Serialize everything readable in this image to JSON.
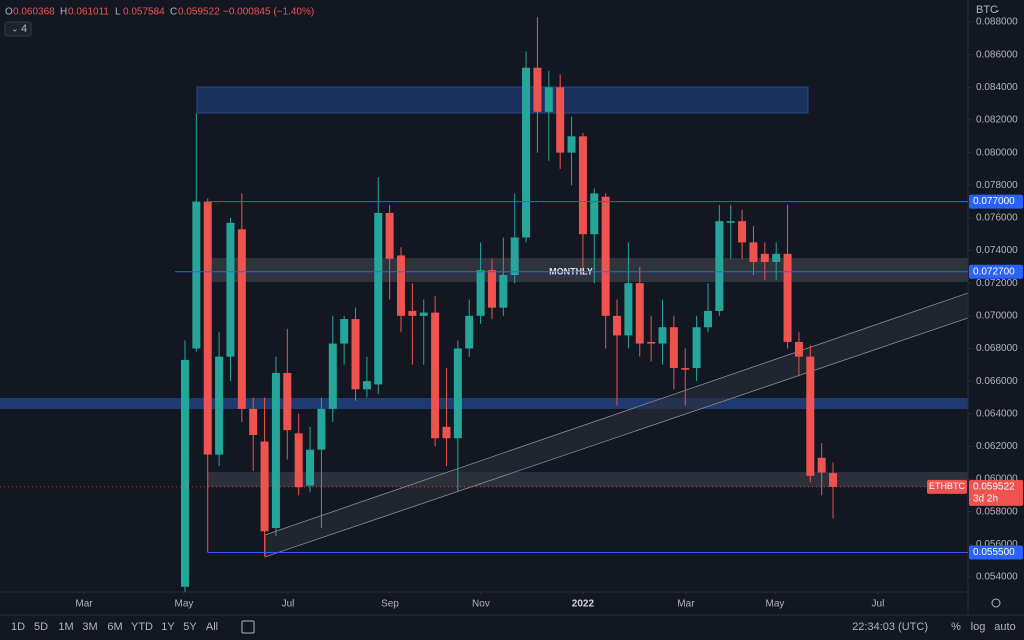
{
  "chart_data": {
    "type": "candlestick",
    "symbol": "ETHBTC",
    "currency": "BTC",
    "indicator_count": 4,
    "countdown": "3d 2h",
    "ohlc_labels": [
      "O",
      "H",
      "L",
      "C"
    ],
    "change": "−0.000845 (−1.40%)",
    "annotation": "MONTHLY",
    "up_color": "#26a69a",
    "down_color": "#ef5350",
    "grid": false,
    "x": [
      0,
      1,
      2,
      3,
      4,
      5,
      6,
      7,
      8,
      9,
      10,
      11,
      12,
      13,
      14,
      15,
      16,
      17,
      18,
      19,
      20,
      21,
      22,
      23,
      24,
      25,
      26,
      27,
      28,
      29,
      30,
      31,
      32,
      33,
      34,
      35,
      36,
      37,
      38,
      39,
      40,
      41,
      42,
      43,
      44,
      45,
      46,
      47,
      48,
      49,
      50,
      51,
      52,
      53,
      54,
      55,
      56,
      57
    ],
    "open": [
      0.0534,
      0.068,
      0.077,
      0.0615,
      0.0675,
      0.0753,
      0.0643,
      0.0623,
      0.057,
      0.0665,
      0.0628,
      0.0596,
      0.0618,
      0.0643,
      0.0683,
      0.0698,
      0.0655,
      0.0658,
      0.0763,
      0.0737,
      0.0703,
      0.07,
      0.0702,
      0.0632,
      0.0625,
      0.068,
      0.07,
      0.0728,
      0.0705,
      0.0725,
      0.0748,
      0.0852,
      0.0825,
      0.084,
      0.08,
      0.081,
      0.075,
      0.0773,
      0.07,
      0.0688,
      0.072,
      0.0684,
      0.0683,
      0.0693,
      0.0668,
      0.0668,
      0.0693,
      0.0703,
      0.0757,
      0.0758,
      0.0745,
      0.0738,
      0.0733,
      0.0738,
      0.0684,
      0.0675,
      0.0613,
      0.060368
    ],
    "high": [
      0.0685,
      0.0824,
      0.0772,
      0.069,
      0.076,
      0.0775,
      0.065,
      0.065,
      0.0675,
      0.0692,
      0.064,
      0.0632,
      0.065,
      0.07,
      0.07,
      0.0705,
      0.0675,
      0.0785,
      0.0768,
      0.0742,
      0.072,
      0.071,
      0.0712,
      0.0668,
      0.0685,
      0.071,
      0.0745,
      0.0735,
      0.0748,
      0.0775,
      0.0862,
      0.0883,
      0.085,
      0.0848,
      0.0822,
      0.0812,
      0.0778,
      0.0775,
      0.071,
      0.0745,
      0.073,
      0.07,
      0.071,
      0.07,
      0.068,
      0.07,
      0.072,
      0.0768,
      0.0768,
      0.0765,
      0.0755,
      0.0745,
      0.0745,
      0.0768,
      0.069,
      0.0682,
      0.0622,
      0.061011
    ],
    "low": [
      0.0531,
      0.0678,
      0.0555,
      0.0608,
      0.066,
      0.0635,
      0.0605,
      0.0553,
      0.0565,
      0.0612,
      0.059,
      0.0592,
      0.057,
      0.0635,
      0.067,
      0.0648,
      0.065,
      0.0652,
      0.071,
      0.069,
      0.067,
      0.067,
      0.062,
      0.0608,
      0.0592,
      0.0675,
      0.0695,
      0.0698,
      0.07,
      0.072,
      0.0745,
      0.08,
      0.0795,
      0.079,
      0.078,
      0.0725,
      0.072,
      0.068,
      0.0645,
      0.068,
      0.0675,
      0.0672,
      0.067,
      0.0655,
      0.0645,
      0.066,
      0.069,
      0.07,
      0.0735,
      0.0735,
      0.0725,
      0.0722,
      0.0722,
      0.068,
      0.0663,
      0.0598,
      0.059,
      0.057584
    ],
    "close": [
      0.0673,
      0.077,
      0.0615,
      0.0675,
      0.0757,
      0.0643,
      0.0627,
      0.0568,
      0.0665,
      0.063,
      0.0595,
      0.0618,
      0.0643,
      0.0683,
      0.0698,
      0.0655,
      0.066,
      0.0763,
      0.0735,
      0.07,
      0.07,
      0.0702,
      0.0625,
      0.0625,
      0.068,
      0.07,
      0.0728,
      0.0705,
      0.0725,
      0.0748,
      0.0852,
      0.0825,
      0.084,
      0.08,
      0.081,
      0.075,
      0.0775,
      0.07,
      0.0688,
      0.072,
      0.0683,
      0.0683,
      0.0693,
      0.0668,
      0.0667,
      0.0693,
      0.0703,
      0.0758,
      0.0758,
      0.0745,
      0.0733,
      0.0733,
      0.0738,
      0.0684,
      0.0675,
      0.0602,
      0.0604,
      0.059522
    ],
    "xlim": [
      -16.27,
      68.87
    ],
    "xticks": [
      {
        "value": -8.88,
        "label": "Mar"
      },
      {
        "value": -0.09,
        "label": "May"
      },
      {
        "value": 9.06,
        "label": "Jul"
      },
      {
        "value": 18.03,
        "label": "Sep"
      },
      {
        "value": 26.03,
        "label": "Nov"
      },
      {
        "value": 35.0,
        "label": "2022"
      },
      {
        "value": 44.06,
        "label": "Mar"
      },
      {
        "value": 51.89,
        "label": "May"
      },
      {
        "value": 60.95,
        "label": "Jul"
      }
    ],
    "ylim": [
      0.05308,
      0.08935
    ],
    "yticks": [
      {
        "value": 0.054,
        "label": "0.054000"
      },
      {
        "value": 0.056,
        "label": "0.056000"
      },
      {
        "value": 0.058,
        "label": "0.058000"
      },
      {
        "value": 0.06,
        "label": "0.060000"
      },
      {
        "value": 0.062,
        "label": "0.062000"
      },
      {
        "value": 0.064,
        "label": "0.064000"
      },
      {
        "value": 0.066,
        "label": "0.066000"
      },
      {
        "value": 0.068,
        "label": "0.068000"
      },
      {
        "value": 0.07,
        "label": "0.070000"
      },
      {
        "value": 0.072,
        "label": "0.072000"
      },
      {
        "value": 0.074,
        "label": "0.074000"
      },
      {
        "value": 0.076,
        "label": "0.076000"
      },
      {
        "value": 0.078,
        "label": "0.078000"
      },
      {
        "value": 0.08,
        "label": "0.080000"
      },
      {
        "value": 0.082,
        "label": "0.082000"
      },
      {
        "value": 0.084,
        "label": "0.084000"
      },
      {
        "value": 0.086,
        "label": "0.086000"
      },
      {
        "value": 0.088,
        "label": "0.088000"
      }
    ],
    "price_lines": [
      {
        "value": 0.077,
        "label": "0.077000"
      },
      {
        "value": 0.0727,
        "label": "0.072700"
      },
      {
        "value": 0.0555,
        "label": "0.055500"
      }
    ]
  },
  "toolbar": {
    "ranges": [
      "1D",
      "5D",
      "1M",
      "3M",
      "6M",
      "YTD",
      "1Y",
      "5Y",
      "All"
    ],
    "time": "22:34:03 (UTC)",
    "scale_buttons": [
      "%",
      "log",
      "auto"
    ]
  }
}
